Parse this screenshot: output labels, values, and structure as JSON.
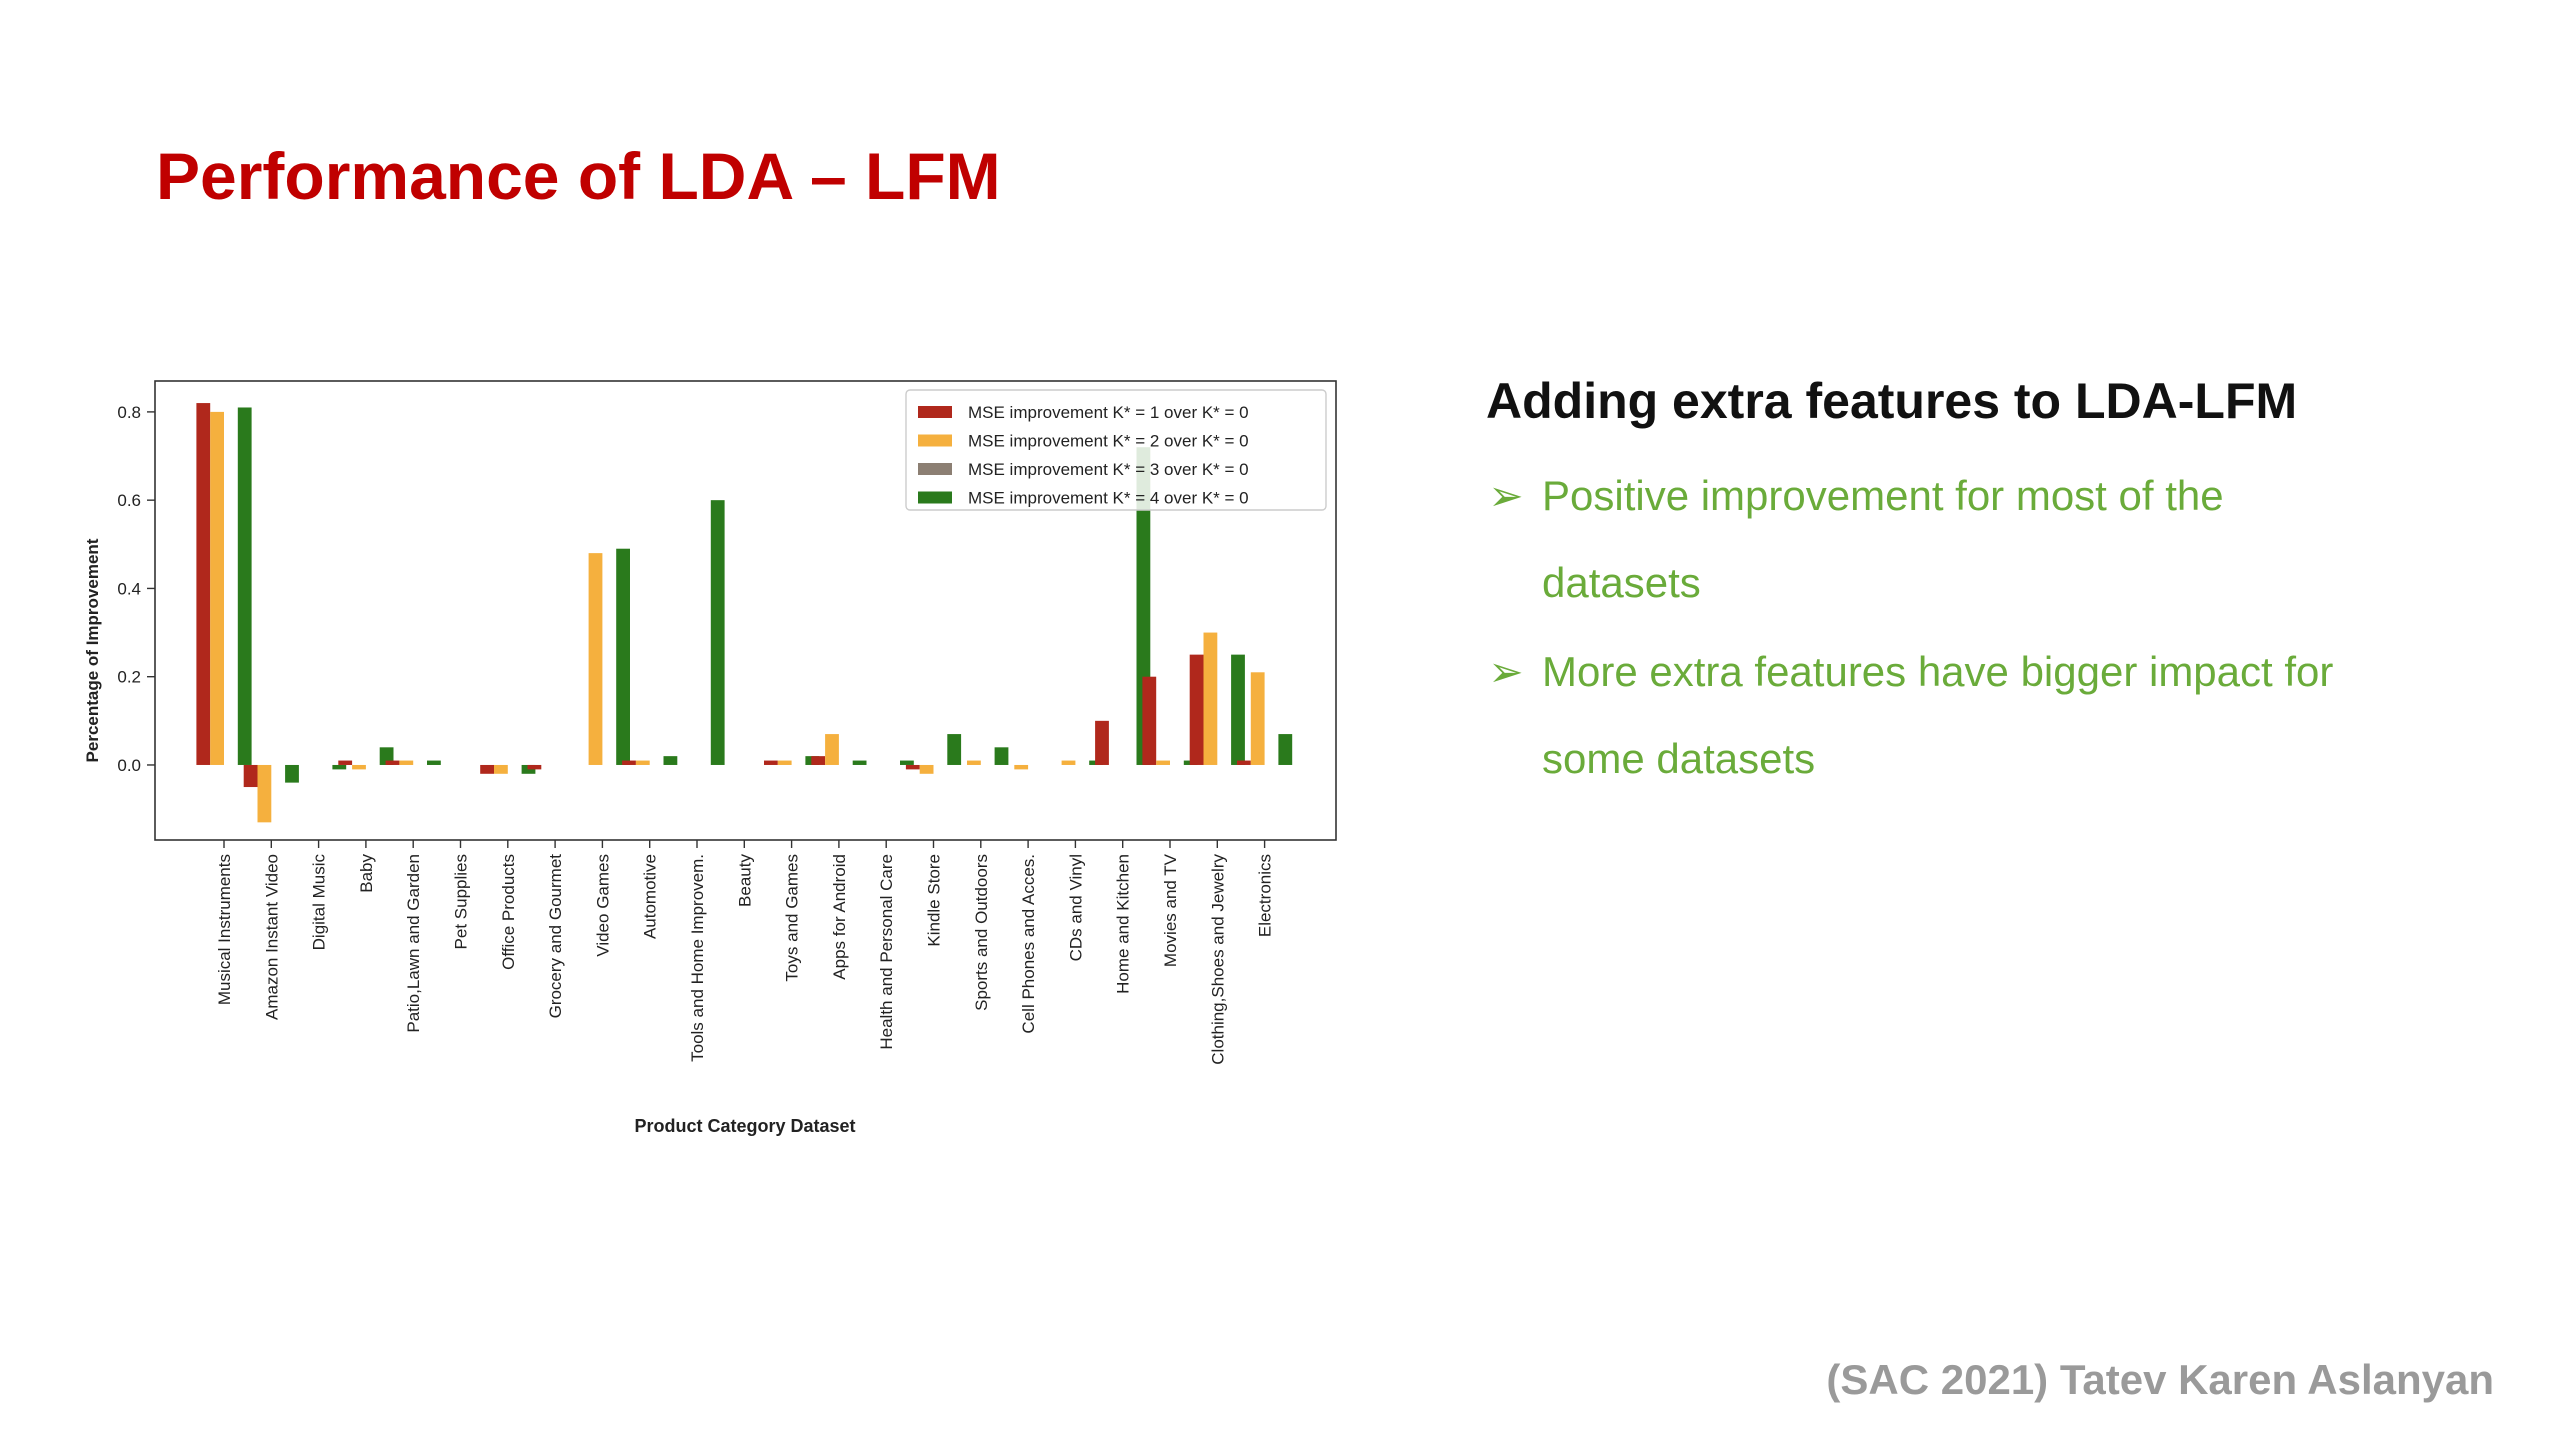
{
  "slide": {
    "title": "Performance of LDA – LFM",
    "footer": "(SAC 2021) Tatev Karen Aslanyan"
  },
  "side_panel": {
    "heading": "Adding extra features to LDA-LFM",
    "bullets": [
      "Positive improvement for most of the datasets",
      "More extra features have bigger impact for some datasets"
    ],
    "bullet_icon": "arrow-bullet-icon"
  },
  "colors": {
    "title": "#c00000",
    "bullets": "#6aab3a",
    "footer": "#9a9a9a"
  },
  "chart_data": {
    "type": "bar",
    "xlabel": "Product Category Dataset",
    "ylabel": "Percentage of Improvement",
    "ylim": [
      -0.17,
      0.87
    ],
    "yticks": [
      0.0,
      0.2,
      0.4,
      0.6,
      0.8
    ],
    "ytick_labels": [
      "0.0",
      "0.2",
      "0.4",
      "0.6",
      "0.8"
    ],
    "legend_position": "top-right",
    "grid": false,
    "categories": [
      "Musical Instruments",
      "Amazon Instant Video",
      "Digital Music",
      "Baby",
      "Patio,Lawn and Garden",
      "Pet Supplies",
      "Office Products",
      "Grocery and Gourmet",
      "Video Games",
      "Automotive",
      "Tools and Home Improvem.",
      "Beauty",
      "Toys and Games",
      "Apps for Android",
      "Health and Personal Care",
      "Kindle Store",
      "Sports and Outdoors",
      "Cell Phones and Acces.",
      "CDs and Vinyl",
      "Home and Kitchen",
      "Movies and TV",
      "Clothing,Shoes and Jewelry",
      "Electronics"
    ],
    "series": [
      {
        "name": "MSE improvement K* = 1 over K* = 0",
        "color": "#b0281c",
        "values": [
          0.82,
          -0.05,
          0.0,
          0.01,
          0.01,
          0.0,
          -0.02,
          -0.01,
          0.0,
          0.01,
          0.0,
          0.0,
          0.01,
          0.02,
          0.0,
          -0.01,
          0.0,
          0.0,
          0.0,
          0.1,
          0.2,
          0.25,
          0.01
        ]
      },
      {
        "name": "MSE improvement K* = 2 over K* = 0",
        "color": "#f5b03e",
        "values": [
          0.8,
          -0.13,
          0.0,
          -0.01,
          0.01,
          0.0,
          -0.02,
          0.0,
          0.48,
          0.01,
          0.0,
          0.0,
          0.01,
          0.07,
          0.0,
          -0.02,
          0.01,
          -0.01,
          0.01,
          0.0,
          0.01,
          0.3,
          0.21
        ]
      },
      {
        "name": "MSE improvement K* = 3 over K* = 0",
        "color": "#8c7f73",
        "values": [
          0.0,
          0.0,
          0.0,
          0.0,
          0.0,
          0.0,
          0.0,
          0.0,
          0.0,
          0.0,
          0.0,
          0.0,
          0.0,
          0.0,
          0.0,
          0.0,
          0.0,
          0.0,
          0.0,
          0.0,
          0.0,
          0.0,
          0.0
        ]
      },
      {
        "name": "MSE improvement K* = 4 over K* = 0",
        "color": "#2a7a1c",
        "values": [
          0.81,
          -0.04,
          -0.01,
          0.04,
          0.01,
          0.0,
          -0.02,
          0.0,
          0.49,
          0.02,
          0.6,
          0.0,
          0.02,
          0.01,
          0.01,
          0.07,
          0.04,
          0.0,
          0.01,
          0.72,
          0.01,
          0.25,
          0.07
        ]
      }
    ]
  }
}
